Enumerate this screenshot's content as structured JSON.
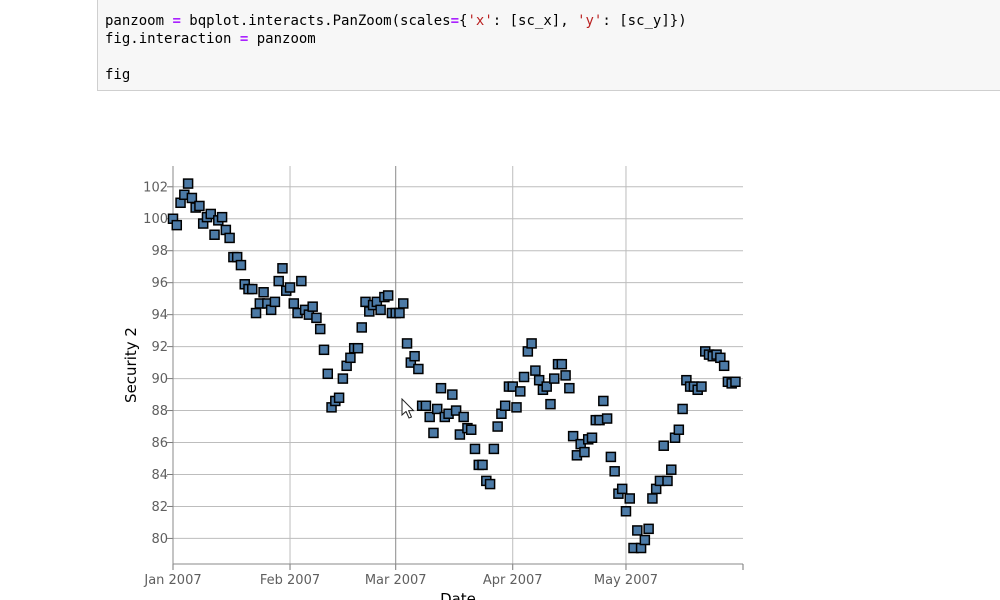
{
  "code_cell": {
    "lines": [
      [
        {
          "t": "panzoom ",
          "c": "plain"
        },
        {
          "t": "=",
          "c": "op"
        },
        {
          "t": " bqplot.interacts.PanZoom(scales",
          "c": "plain"
        },
        {
          "t": "=",
          "c": "op"
        },
        {
          "t": "{",
          "c": "plain"
        },
        {
          "t": "'x'",
          "c": "str"
        },
        {
          "t": ": [sc_x], ",
          "c": "plain"
        },
        {
          "t": "'y'",
          "c": "str"
        },
        {
          "t": ": [sc_y]})",
          "c": "plain"
        }
      ],
      [
        {
          "t": "fig.interaction ",
          "c": "plain"
        },
        {
          "t": "=",
          "c": "op"
        },
        {
          "t": " panzoom",
          "c": "plain"
        }
      ],
      [],
      [
        {
          "t": "fig",
          "c": "plain"
        }
      ]
    ]
  },
  "colors": {
    "marker_fill": "#4c7aa6",
    "marker_stroke": "#000000",
    "grid": "#bdbdbd",
    "axis_text": "#5f5f5f",
    "axis_label": "#000000"
  },
  "cursor_icon": "mouse-pointer",
  "chart_data": {
    "type": "scatter",
    "marker": "square",
    "xlabel": "Date",
    "ylabel": "Security 2",
    "x_ticks": [
      "Jan 2007",
      "Feb 2007",
      "Mar 2007",
      "Apr 2007",
      "May 2007"
    ],
    "y_ticks": [
      80,
      82,
      84,
      86,
      88,
      90,
      92,
      94,
      96,
      98,
      100,
      102
    ],
    "x_range": [
      "2007-01-01",
      "2007-06-01"
    ],
    "ylim": [
      78.4,
      103.3
    ],
    "grid": true,
    "points": [
      [
        "2007-01-01",
        100.0
      ],
      [
        "2007-01-02",
        99.6
      ],
      [
        "2007-01-03",
        101.0
      ],
      [
        "2007-01-04",
        101.5
      ],
      [
        "2007-01-05",
        102.2
      ],
      [
        "2007-01-06",
        101.3
      ],
      [
        "2007-01-07",
        100.7
      ],
      [
        "2007-01-08",
        100.8
      ],
      [
        "2007-01-09",
        99.7
      ],
      [
        "2007-01-10",
        100.1
      ],
      [
        "2007-01-11",
        100.3
      ],
      [
        "2007-01-12",
        99.0
      ],
      [
        "2007-01-13",
        99.9
      ],
      [
        "2007-01-14",
        100.1
      ],
      [
        "2007-01-15",
        99.3
      ],
      [
        "2007-01-16",
        98.8
      ],
      [
        "2007-01-17",
        97.6
      ],
      [
        "2007-01-18",
        97.6
      ],
      [
        "2007-01-19",
        97.1
      ],
      [
        "2007-01-20",
        95.9
      ],
      [
        "2007-01-21",
        95.6
      ],
      [
        "2007-01-22",
        95.6
      ],
      [
        "2007-01-23",
        94.1
      ],
      [
        "2007-01-24",
        94.7
      ],
      [
        "2007-01-25",
        95.4
      ],
      [
        "2007-01-26",
        94.7
      ],
      [
        "2007-01-27",
        94.3
      ],
      [
        "2007-01-28",
        94.8
      ],
      [
        "2007-01-29",
        96.1
      ],
      [
        "2007-01-30",
        96.9
      ],
      [
        "2007-01-31",
        95.5
      ],
      [
        "2007-02-01",
        95.7
      ],
      [
        "2007-02-02",
        94.7
      ],
      [
        "2007-02-03",
        94.1
      ],
      [
        "2007-02-04",
        96.1
      ],
      [
        "2007-02-05",
        94.3
      ],
      [
        "2007-02-06",
        94.0
      ],
      [
        "2007-02-07",
        94.5
      ],
      [
        "2007-02-08",
        93.8
      ],
      [
        "2007-02-09",
        93.1
      ],
      [
        "2007-02-10",
        91.8
      ],
      [
        "2007-02-11",
        90.3
      ],
      [
        "2007-02-12",
        88.2
      ],
      [
        "2007-02-13",
        88.6
      ],
      [
        "2007-02-14",
        88.8
      ],
      [
        "2007-02-15",
        90.0
      ],
      [
        "2007-02-16",
        90.8
      ],
      [
        "2007-02-17",
        91.3
      ],
      [
        "2007-02-18",
        91.9
      ],
      [
        "2007-02-19",
        91.9
      ],
      [
        "2007-02-20",
        93.2
      ],
      [
        "2007-02-21",
        94.8
      ],
      [
        "2007-02-22",
        94.2
      ],
      [
        "2007-02-23",
        94.6
      ],
      [
        "2007-02-24",
        94.8
      ],
      [
        "2007-02-25",
        94.3
      ],
      [
        "2007-02-26",
        95.1
      ],
      [
        "2007-02-27",
        95.2
      ],
      [
        "2007-02-28",
        94.1
      ],
      [
        "2007-03-01",
        94.1
      ],
      [
        "2007-03-02",
        94.1
      ],
      [
        "2007-03-03",
        94.7
      ],
      [
        "2007-03-04",
        92.2
      ],
      [
        "2007-03-05",
        91.0
      ],
      [
        "2007-03-06",
        91.4
      ],
      [
        "2007-03-07",
        90.6
      ],
      [
        "2007-03-08",
        88.3
      ],
      [
        "2007-03-09",
        88.3
      ],
      [
        "2007-03-10",
        87.6
      ],
      [
        "2007-03-11",
        86.6
      ],
      [
        "2007-03-12",
        88.1
      ],
      [
        "2007-03-13",
        89.4
      ],
      [
        "2007-03-14",
        87.6
      ],
      [
        "2007-03-15",
        87.8
      ],
      [
        "2007-03-16",
        89.0
      ],
      [
        "2007-03-17",
        88.0
      ],
      [
        "2007-03-18",
        86.5
      ],
      [
        "2007-03-19",
        87.6
      ],
      [
        "2007-03-20",
        86.9
      ],
      [
        "2007-03-21",
        86.8
      ],
      [
        "2007-03-22",
        85.6
      ],
      [
        "2007-03-23",
        84.6
      ],
      [
        "2007-03-24",
        84.6
      ],
      [
        "2007-03-25",
        83.6
      ],
      [
        "2007-03-26",
        83.4
      ],
      [
        "2007-03-27",
        85.6
      ],
      [
        "2007-03-28",
        87.0
      ],
      [
        "2007-03-29",
        87.8
      ],
      [
        "2007-03-30",
        88.3
      ],
      [
        "2007-03-31",
        89.5
      ],
      [
        "2007-04-01",
        89.5
      ],
      [
        "2007-04-02",
        88.2
      ],
      [
        "2007-04-03",
        89.2
      ],
      [
        "2007-04-04",
        90.1
      ],
      [
        "2007-04-05",
        91.7
      ],
      [
        "2007-04-06",
        92.2
      ],
      [
        "2007-04-07",
        90.5
      ],
      [
        "2007-04-08",
        89.9
      ],
      [
        "2007-04-09",
        89.3
      ],
      [
        "2007-04-10",
        89.5
      ],
      [
        "2007-04-11",
        88.4
      ],
      [
        "2007-04-12",
        90.0
      ],
      [
        "2007-04-13",
        90.9
      ],
      [
        "2007-04-14",
        90.9
      ],
      [
        "2007-04-15",
        90.2
      ],
      [
        "2007-04-16",
        89.4
      ],
      [
        "2007-04-17",
        86.4
      ],
      [
        "2007-04-18",
        85.2
      ],
      [
        "2007-04-19",
        85.9
      ],
      [
        "2007-04-20",
        85.4
      ],
      [
        "2007-04-21",
        86.2
      ],
      [
        "2007-04-22",
        86.3
      ],
      [
        "2007-04-23",
        87.4
      ],
      [
        "2007-04-24",
        87.4
      ],
      [
        "2007-04-25",
        88.6
      ],
      [
        "2007-04-26",
        87.5
      ],
      [
        "2007-04-27",
        85.1
      ],
      [
        "2007-04-28",
        84.2
      ],
      [
        "2007-04-29",
        82.8
      ],
      [
        "2007-04-30",
        83.1
      ],
      [
        "2007-05-01",
        81.7
      ],
      [
        "2007-05-02",
        82.5
      ],
      [
        "2007-05-03",
        79.4
      ],
      [
        "2007-05-04",
        80.5
      ],
      [
        "2007-05-05",
        79.4
      ],
      [
        "2007-05-06",
        79.9
      ],
      [
        "2007-05-07",
        80.6
      ],
      [
        "2007-05-08",
        82.5
      ],
      [
        "2007-05-09",
        83.1
      ],
      [
        "2007-05-10",
        83.6
      ],
      [
        "2007-05-11",
        85.8
      ],
      [
        "2007-05-12",
        83.6
      ],
      [
        "2007-05-13",
        84.3
      ],
      [
        "2007-05-14",
        86.3
      ],
      [
        "2007-05-15",
        86.8
      ],
      [
        "2007-05-16",
        88.1
      ],
      [
        "2007-05-17",
        89.9
      ],
      [
        "2007-05-18",
        89.5
      ],
      [
        "2007-05-19",
        89.5
      ],
      [
        "2007-05-20",
        89.3
      ],
      [
        "2007-05-21",
        89.5
      ],
      [
        "2007-05-22",
        91.7
      ],
      [
        "2007-05-23",
        91.5
      ],
      [
        "2007-05-24",
        91.4
      ],
      [
        "2007-05-25",
        91.5
      ],
      [
        "2007-05-26",
        91.3
      ],
      [
        "2007-05-27",
        90.8
      ],
      [
        "2007-05-28",
        89.8
      ],
      [
        "2007-05-29",
        89.7
      ],
      [
        "2007-05-30",
        89.8
      ]
    ]
  }
}
